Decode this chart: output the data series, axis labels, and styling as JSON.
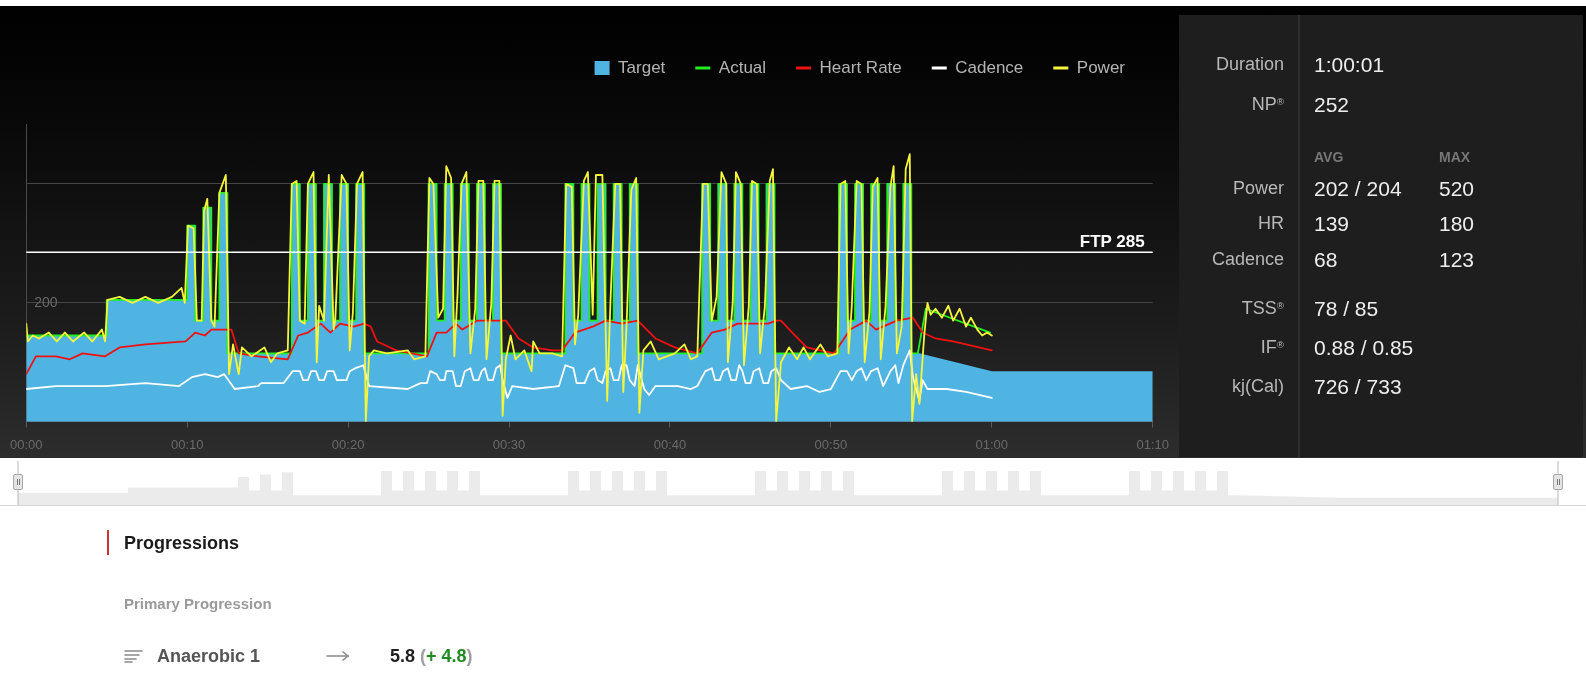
{
  "chart_data": [
    {
      "type": "area",
      "legend": "top right",
      "grid": "y",
      "marker": "none",
      "line_style": "solid",
      "xlim": [
        0,
        70
      ],
      "xticks": [
        {
          "value": 0,
          "label": "00:00"
        },
        {
          "value": 10,
          "label": "00:10"
        },
        {
          "value": 20,
          "label": "00:20"
        },
        {
          "value": 30,
          "label": "00:30"
        },
        {
          "value": 40,
          "label": "00:40"
        },
        {
          "value": 50,
          "label": "00:50"
        },
        {
          "value": 60,
          "label": "01:00"
        },
        {
          "value": 70,
          "label": "01:10"
        }
      ],
      "ylim": [
        0,
        500
      ],
      "yticks": [
        200,
        {
          "value": 400,
          "label": null
        }
      ],
      "ref_lines": [
        {
          "axis": "y",
          "value": 285,
          "label": "FTP 285",
          "color": "#ffffff"
        }
      ],
      "series": [
        {
          "name": "Target",
          "color": "#4fb4e2",
          "x": [
            0,
            5,
            5,
            10,
            10,
            10.5,
            10.5,
            11,
            11,
            11.5,
            11.5,
            12,
            12,
            12.5,
            12.5,
            16.5,
            16.5,
            17,
            17,
            17.5,
            17.5,
            18,
            18,
            18.5,
            18.5,
            19,
            19,
            19.5,
            19.5,
            20,
            20,
            20.5,
            20.5,
            21,
            21,
            25,
            25,
            25.5,
            25.5,
            26,
            26,
            26.5,
            26.5,
            27,
            27,
            27.5,
            27.5,
            28,
            28,
            28.5,
            28.5,
            29,
            29,
            29.5,
            29.5,
            33.5,
            33.5,
            34,
            34,
            34.5,
            34.5,
            35,
            35,
            35.5,
            35.5,
            36,
            36,
            36.5,
            36.5,
            37,
            37,
            37.5,
            37.5,
            38,
            38,
            42,
            42,
            42.5,
            42.5,
            43,
            43,
            43.5,
            43.5,
            44,
            44,
            44.5,
            44.5,
            45,
            45,
            45.5,
            45.5,
            46,
            46,
            46.5,
            46.5,
            50.5,
            50.5,
            51,
            51,
            51.5,
            51.5,
            52,
            52,
            52.5,
            52.5,
            53,
            53,
            53.5,
            53.5,
            54,
            54,
            54.5,
            54.5,
            55,
            55,
            55.5,
            60,
            70
          ],
          "values": [
            145,
            145,
            205,
            205,
            330,
            330,
            170,
            170,
            360,
            360,
            170,
            170,
            385,
            385,
            115,
            115,
            400,
            400,
            170,
            170,
            400,
            400,
            170,
            170,
            400,
            400,
            170,
            170,
            400,
            400,
            170,
            170,
            400,
            400,
            115,
            115,
            400,
            400,
            170,
            170,
            400,
            400,
            170,
            170,
            400,
            400,
            170,
            170,
            400,
            400,
            170,
            170,
            400,
            400,
            115,
            115,
            400,
            400,
            170,
            170,
            400,
            400,
            170,
            170,
            400,
            400,
            170,
            170,
            400,
            400,
            170,
            170,
            400,
            400,
            115,
            115,
            400,
            400,
            170,
            170,
            400,
            400,
            170,
            170,
            400,
            400,
            170,
            170,
            400,
            400,
            170,
            170,
            400,
            400,
            115,
            115,
            400,
            400,
            170,
            170,
            400,
            400,
            170,
            170,
            400,
            400,
            170,
            170,
            400,
            400,
            170,
            170,
            400,
            400,
            115,
            115,
            85,
            85
          ]
        },
        {
          "name": "Actual",
          "type": "line",
          "color": "#22ee22",
          "x": [
            0,
            5,
            5,
            10,
            10,
            10.5,
            10.5,
            11,
            11,
            11.5,
            11.5,
            12,
            12,
            12.5,
            12.5,
            16.5,
            16.5,
            17,
            17,
            17.5,
            17.5,
            18,
            18,
            18.5,
            18.5,
            19,
            19,
            19.5,
            19.5,
            20,
            20,
            20.5,
            20.5,
            21,
            21,
            25,
            25,
            25.5,
            25.5,
            26,
            26,
            26.5,
            26.5,
            27,
            27,
            27.5,
            27.5,
            28,
            28,
            28.5,
            28.5,
            29,
            29,
            29.5,
            29.5,
            33.5,
            33.5,
            34,
            34,
            34.5,
            34.5,
            35,
            35,
            35.5,
            35.5,
            36,
            36,
            36.5,
            36.5,
            37,
            37,
            37.5,
            37.5,
            38,
            38,
            42,
            42,
            42.5,
            42.5,
            43,
            43,
            43.5,
            43.5,
            44,
            44,
            44.5,
            44.5,
            45,
            45,
            45.5,
            45.5,
            46,
            46,
            46.5,
            46.5,
            50.5,
            50.5,
            51,
            51,
            51.5,
            51.5,
            52,
            52,
            52.5,
            52.5,
            53,
            53,
            53.5,
            53.5,
            54,
            54,
            54.5,
            54.5,
            55,
            55,
            55.4,
            55.6,
            55.9,
            59.9
          ],
          "values": [
            145,
            145,
            205,
            205,
            330,
            330,
            170,
            170,
            360,
            360,
            170,
            170,
            385,
            385,
            115,
            115,
            400,
            400,
            170,
            170,
            400,
            400,
            170,
            170,
            400,
            400,
            170,
            170,
            400,
            400,
            170,
            170,
            400,
            400,
            115,
            115,
            400,
            400,
            170,
            170,
            400,
            400,
            170,
            170,
            400,
            400,
            170,
            170,
            400,
            400,
            170,
            170,
            400,
            400,
            115,
            115,
            400,
            400,
            170,
            170,
            400,
            400,
            170,
            170,
            400,
            400,
            170,
            170,
            400,
            400,
            170,
            170,
            400,
            400,
            115,
            115,
            400,
            400,
            170,
            170,
            400,
            400,
            170,
            170,
            400,
            400,
            170,
            170,
            400,
            400,
            170,
            170,
            400,
            400,
            115,
            115,
            400,
            400,
            170,
            170,
            400,
            400,
            170,
            170,
            400,
            400,
            170,
            170,
            400,
            400,
            170,
            170,
            400,
            400,
            115,
            115,
            145,
            190,
            150
          ]
        },
        {
          "name": "Heart Rate",
          "type": "line",
          "color": "#ee1111",
          "x": [
            0,
            0.6,
            1.85,
            2.7,
            3.5,
            4.9,
            5.8,
            7.4,
            9.9,
            10.5,
            11.1,
            11.5,
            12.3,
            12.75,
            13.2,
            14.4,
            16.25,
            16.9,
            17.5,
            18.3,
            18.9,
            19.5,
            20.35,
            21,
            21.4,
            21.8,
            23,
            24.9,
            25.5,
            26.1,
            26.7,
            27.1,
            28,
            28.8,
            29.8,
            30.6,
            31.5,
            32.7,
            33.3,
            34.1,
            35.2,
            36,
            37,
            38,
            39.1,
            40.3,
            41.7,
            42.6,
            43.4,
            44.2,
            45,
            46.1,
            46.6,
            46.9,
            47.6,
            48.5,
            50.2,
            51.2,
            52.2,
            52.8,
            54.1,
            55.1,
            55.7,
            56.5,
            57.6,
            59.2,
            60
          ],
          "values": [
            80,
            110,
            110,
            105,
            115,
            110,
            125,
            130,
            135,
            150,
            145,
            155,
            155,
            155,
            115,
            110,
            105,
            145,
            150,
            165,
            150,
            165,
            160,
            165,
            160,
            135,
            120,
            110,
            150,
            150,
            165,
            155,
            170,
            170,
            170,
            140,
            125,
            120,
            120,
            150,
            160,
            170,
            165,
            170,
            140,
            125,
            115,
            150,
            155,
            165,
            165,
            165,
            170,
            170,
            150,
            125,
            115,
            155,
            170,
            155,
            170,
            175,
            150,
            140,
            135,
            125,
            120
          ]
        },
        {
          "name": "Cadence",
          "type": "line",
          "color": "#ffffff",
          "x": [
            0,
            1.85,
            4.9,
            7.4,
            9.5,
            10.3,
            11.1,
            11.9,
            12.3,
            12.95,
            14.4,
            14.6,
            16,
            16.55,
            17,
            17.2,
            17.5,
            17.7,
            18,
            18.2,
            18.5,
            18.7,
            19.1,
            19.3,
            19.9,
            20.1,
            20.45,
            20.95,
            21.3,
            23.7,
            24.5,
            24.9,
            25.1,
            25.5,
            25.7,
            26,
            26.1,
            26.5,
            26.7,
            27,
            27.25,
            27.6,
            27.8,
            28.1,
            28.3,
            28.5,
            28.7,
            29,
            29.2,
            29.45,
            29.6,
            29.9,
            30.2,
            31.5,
            33.1,
            33.5,
            34,
            34.2,
            34.7,
            35,
            35.3,
            35.5,
            35.8,
            36,
            36.3,
            36.5,
            36.8,
            37,
            37.3,
            37.5,
            37.8,
            38,
            38.4,
            38.7,
            39.1,
            40.5,
            41.3,
            41.7,
            42.2,
            42.6,
            42.8,
            43.1,
            43.3,
            43.6,
            43.8,
            44.1,
            44.3,
            44.5,
            44.7,
            45,
            45.2,
            45.55,
            45.8,
            46.1,
            46.3,
            46.6,
            46.9,
            47.5,
            48.5,
            49.3,
            50,
            50.6,
            51,
            51.3,
            51.6,
            51.9,
            52.2,
            52.5,
            52.9,
            53.25,
            53.7,
            54,
            54.2,
            54.5,
            54.9,
            55.1,
            55.5,
            55.7,
            56,
            57.2,
            58.4,
            59.2,
            60
          ],
          "values": [
            55,
            60,
            60,
            65,
            60,
            75,
            80,
            75,
            80,
            55,
            60,
            65,
            65,
            85,
            85,
            70,
            70,
            85,
            85,
            70,
            70,
            85,
            85,
            70,
            70,
            85,
            90,
            95,
            60,
            55,
            65,
            65,
            85,
            80,
            70,
            70,
            85,
            85,
            60,
            60,
            85,
            90,
            70,
            70,
            85,
            90,
            70,
            70,
            90,
            95,
            70,
            40,
            60,
            55,
            60,
            95,
            90,
            65,
            65,
            85,
            90,
            70,
            65,
            85,
            90,
            70,
            70,
            95,
            95,
            70,
            60,
            95,
            55,
            45,
            60,
            60,
            55,
            60,
            85,
            90,
            70,
            70,
            85,
            90,
            70,
            70,
            95,
            85,
            65,
            65,
            85,
            90,
            65,
            65,
            85,
            90,
            70,
            55,
            60,
            50,
            55,
            85,
            85,
            70,
            85,
            90,
            70,
            85,
            90,
            60,
            85,
            95,
            65,
            95,
            120,
            75,
            35,
            70,
            55,
            55,
            50,
            45,
            40
          ]
        },
        {
          "name": "Power",
          "type": "line",
          "color": "#f5f53c",
          "x": [
            0,
            0.1,
            0.4,
            0.8,
            1.4,
            1.9,
            2.4,
            2.9,
            3.6,
            4.1,
            4.7,
            4.9,
            5.05,
            5.8,
            6.6,
            7.4,
            8.2,
            9.05,
            9.65,
            9.85,
            10.05,
            10.4,
            10.6,
            10.9,
            11.05,
            11.25,
            11.5,
            11.7,
            12,
            12.4,
            12.5,
            12.6,
            12.85,
            13.2,
            13.4,
            14,
            14.8,
            15.2,
            15.6,
            16.25,
            16.5,
            16.8,
            17,
            17.3,
            17.5,
            17.85,
            18.05,
            18.2,
            18.5,
            18.8,
            19.1,
            19.2,
            19.6,
            19.9,
            20.1,
            20.3,
            20.55,
            20.9,
            21.1,
            21.3,
            21.6,
            22.4,
            23.7,
            24.1,
            24.8,
            25.05,
            25.3,
            25.6,
            25.9,
            26.1,
            26.4,
            26.6,
            26.8,
            27.05,
            27.35,
            27.6,
            27.9,
            28.1,
            28.4,
            28.6,
            28.9,
            29.1,
            29.4,
            29.6,
            29.8,
            30.1,
            30.4,
            30.95,
            31.4,
            31.5,
            31.9,
            32.7,
            33.3,
            33.55,
            33.9,
            34.1,
            34.3,
            34.65,
            34.9,
            35.2,
            35.4,
            35.8,
            36.1,
            36.3,
            36.6,
            36.9,
            37.1,
            37.3,
            37.6,
            37.9,
            38.1,
            38.35,
            38.8,
            39.3,
            40.3,
            40.9,
            41.3,
            41.7,
            42.05,
            42.35,
            42.6,
            42.9,
            43.2,
            43.5,
            43.6,
            43.9,
            44.1,
            44.4,
            44.6,
            44.9,
            45.1,
            45.4,
            45.6,
            45.9,
            46.2,
            46.4,
            46.6,
            46.9,
            47.4,
            47.9,
            48.3,
            48.7,
            49.35,
            49.8,
            50.4,
            50.6,
            50.9,
            51.1,
            51.3,
            51.6,
            51.9,
            52.1,
            52.4,
            52.6,
            52.9,
            53.1,
            53.4,
            53.7,
            53.9,
            54.1,
            54.4,
            54.65,
            54.9,
            55.05,
            55.3,
            55.5,
            55.8,
            56,
            56.2,
            56.5,
            56.9,
            57.3,
            57.6,
            58,
            58.4,
            58.7,
            59.1,
            59.4,
            59.7,
            60
          ],
          "values": [
            165,
            135,
            145,
            140,
            150,
            135,
            150,
            135,
            150,
            135,
            155,
            135,
            205,
            210,
            200,
            210,
            200,
            210,
            225,
            200,
            330,
            325,
            170,
            170,
            355,
            375,
            170,
            160,
            385,
            415,
            255,
            80,
            130,
            80,
            125,
            110,
            125,
            100,
            115,
            120,
            400,
            405,
            170,
            165,
            400,
            420,
            100,
            195,
            170,
            415,
            155,
            170,
            415,
            400,
            120,
            185,
            400,
            420,
            0,
            110,
            120,
            115,
            120,
            105,
            110,
            410,
            400,
            175,
            190,
            430,
            410,
            110,
            215,
            400,
            420,
            115,
            190,
            405,
            405,
            105,
            200,
            405,
            405,
            10,
            105,
            145,
            105,
            120,
            85,
            135,
            115,
            115,
            110,
            400,
            395,
            130,
            180,
            405,
            420,
            180,
            415,
            415,
            35,
            200,
            400,
            400,
            50,
            160,
            390,
            410,
            15,
            120,
            135,
            105,
            115,
            130,
            105,
            110,
            400,
            400,
            170,
            210,
            420,
            400,
            100,
            200,
            420,
            400,
            95,
            195,
            405,
            400,
            115,
            195,
            405,
            425,
            0,
            100,
            125,
            105,
            125,
            105,
            130,
            110,
            115,
            400,
            405,
            115,
            195,
            405,
            400,
            100,
            185,
            395,
            410,
            105,
            195,
            395,
            430,
            115,
            160,
            425,
            450,
            0,
            80,
            30,
            145,
            200,
            180,
            190,
            175,
            195,
            170,
            190,
            160,
            175,
            155,
            145,
            150,
            145
          ]
        }
      ]
    },
    {
      "type": "other",
      "annotations": [
        "Duration",
        "1:00:01",
        "NP$^{®}$",
        "252",
        "AVG",
        "MAX",
        "Power",
        "202 / 204",
        "520",
        "HR",
        "139",
        "180",
        "Cadence",
        "68",
        "123",
        "TSS$^{®}$",
        "78 / 85",
        "IF$^{®}$",
        "0.88 / 0.85",
        "kj(Cal)",
        "726 / 733"
      ]
    },
    {
      "type": "other",
      "title": "Progressions",
      "subtitle": "Primary Progression",
      "annotations": [
        "Anaerobic 1",
        "5.8",
        "(",
        "+ 4.8",
        ")"
      ]
    }
  ]
}
